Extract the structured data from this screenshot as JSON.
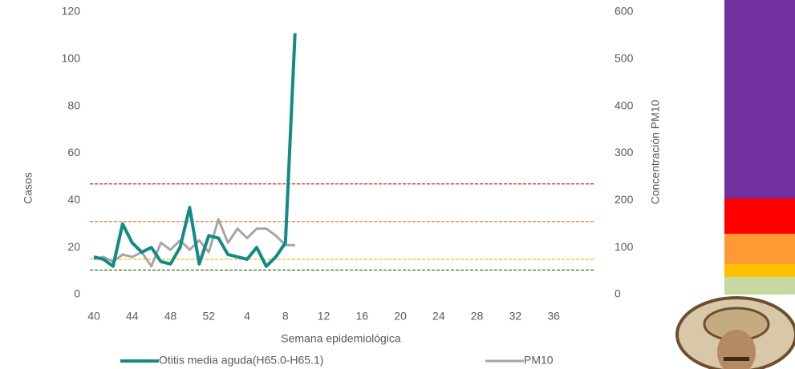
{
  "chart_data": {
    "type": "line",
    "x_label": "Semana epidemiológica",
    "y_label": "Casos",
    "y2_label": "Concentración PM10",
    "categories": [
      "40",
      null,
      null,
      null,
      "44",
      null,
      null,
      null,
      "48",
      null,
      null,
      null,
      "52",
      null,
      null,
      null,
      "4",
      null,
      null,
      null,
      "8",
      null,
      null,
      null,
      "12",
      null,
      null,
      null,
      "16",
      null,
      null,
      null,
      "20",
      null,
      null,
      null,
      "24",
      null,
      null,
      null,
      "28",
      null,
      null,
      null,
      "32",
      null,
      null,
      null,
      "36",
      null,
      null,
      null
    ],
    "series": [
      {
        "name": "Otitis media aguda(H65.0-H65.1)",
        "color": "#138a85",
        "axis": "y",
        "values": [
          16,
          15,
          12,
          30,
          22,
          18,
          20,
          14,
          13,
          20,
          37,
          13,
          25,
          24,
          17,
          16,
          15,
          20,
          12,
          16,
          22,
          111,
          null,
          null,
          null,
          null,
          null,
          null,
          null,
          null,
          null,
          null,
          null,
          null,
          null,
          null,
          null,
          null,
          null,
          null,
          null,
          null,
          null,
          null,
          null,
          null,
          null,
          null,
          null,
          null,
          null,
          null
        ]
      },
      {
        "name": "PM10",
        "color": "#a6a6a6",
        "axis": "y2",
        "values": [
          75,
          80,
          70,
          85,
          80,
          90,
          60,
          110,
          95,
          115,
          95,
          115,
          90,
          160,
          110,
          140,
          120,
          140,
          140,
          125,
          105,
          105,
          null,
          null,
          null,
          null,
          null,
          null,
          null,
          null,
          null,
          null,
          null,
          null,
          null,
          null,
          null,
          null,
          null,
          null,
          null,
          null,
          null,
          null,
          null,
          null,
          null,
          null,
          null,
          null,
          null,
          null
        ]
      }
    ],
    "ylim": [
      0,
      120
    ],
    "yticks": [
      0,
      20,
      40,
      60,
      80,
      100,
      120
    ],
    "y2lim": [
      0,
      600
    ],
    "y2ticks": [
      0,
      100,
      200,
      300,
      400,
      500,
      600
    ],
    "thresholds": [
      {
        "value": 235,
        "color": "#e02020"
      },
      {
        "value": 155,
        "color": "#e07020"
      },
      {
        "value": 75,
        "color": "#f0c000"
      },
      {
        "value": 52,
        "color": "#3a7a20"
      }
    ]
  }
}
